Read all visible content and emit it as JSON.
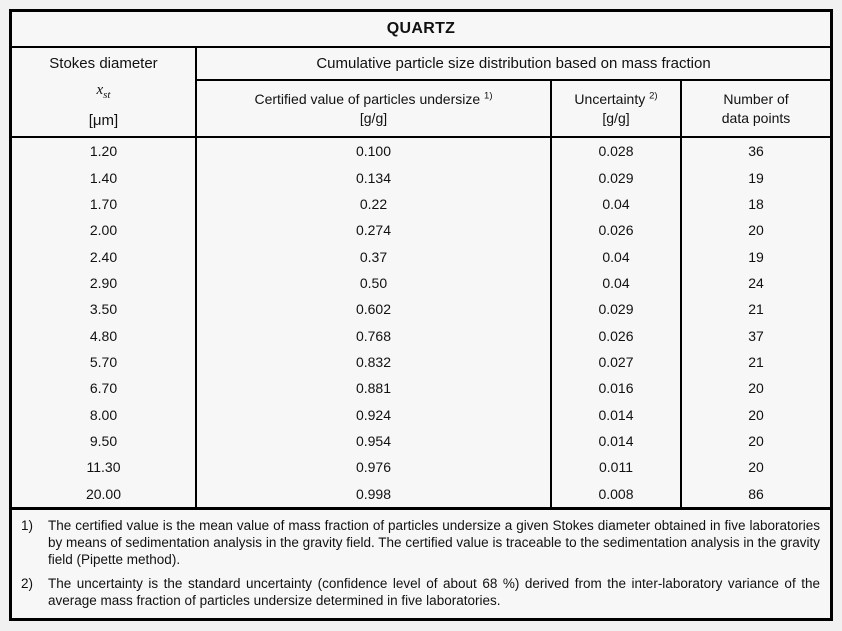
{
  "title": "QUARTZ",
  "header": {
    "col1": {
      "line1": "Stokes diameter",
      "symbol": "x",
      "symbol_sub": "st",
      "unit": "[μm]"
    },
    "span": "Cumulative particle size distribution based on mass fraction",
    "col2": {
      "label": "Certified value of particles undersize",
      "sup": "1)",
      "unit": "[g/g]"
    },
    "col3": {
      "label": "Uncertainty",
      "sup": "2)",
      "unit": "[g/g]"
    },
    "col4": {
      "line1": "Number of",
      "line2": "data points"
    }
  },
  "rows": [
    {
      "d": "1.20",
      "v": "0.100",
      "u": "0.028",
      "n": "36"
    },
    {
      "d": "1.40",
      "v": "0.134",
      "u": "0.029",
      "n": "19"
    },
    {
      "d": "1.70",
      "v": "0.22",
      "u": "0.04",
      "n": "18"
    },
    {
      "d": "2.00",
      "v": "0.274",
      "u": "0.026",
      "n": "20"
    },
    {
      "d": "2.40",
      "v": "0.37",
      "u": "0.04",
      "n": "19"
    },
    {
      "d": "2.90",
      "v": "0.50",
      "u": "0.04",
      "n": "24"
    },
    {
      "d": "3.50",
      "v": "0.602",
      "u": "0.029",
      "n": "21"
    },
    {
      "d": "4.80",
      "v": "0.768",
      "u": "0.026",
      "n": "37"
    },
    {
      "d": "5.70",
      "v": "0.832",
      "u": "0.027",
      "n": "21"
    },
    {
      "d": "6.70",
      "v": "0.881",
      "u": "0.016",
      "n": "20"
    },
    {
      "d": "8.00",
      "v": "0.924",
      "u": "0.014",
      "n": "20"
    },
    {
      "d": "9.50",
      "v": "0.954",
      "u": "0.014",
      "n": "20"
    },
    {
      "d": "11.30",
      "v": "0.976",
      "u": "0.011",
      "n": "20"
    },
    {
      "d": "20.00",
      "v": "0.998",
      "u": "0.008",
      "n": "86"
    }
  ],
  "footnotes": [
    {
      "marker": "1)",
      "text": "The certified value is the mean value of mass fraction of particles undersize a given Stokes diameter obtained in five laboratories by means of sedimentation analysis in the gravity field. The certified value is traceable to the sedimentation analysis in the gravity field (Pipette method)."
    },
    {
      "marker": "2)",
      "text": "The uncertainty is the standard uncertainty (confidence level of about 68 %) derived from the inter-laboratory variance of the average mass fraction of particles undersize determined in five laboratories."
    }
  ]
}
